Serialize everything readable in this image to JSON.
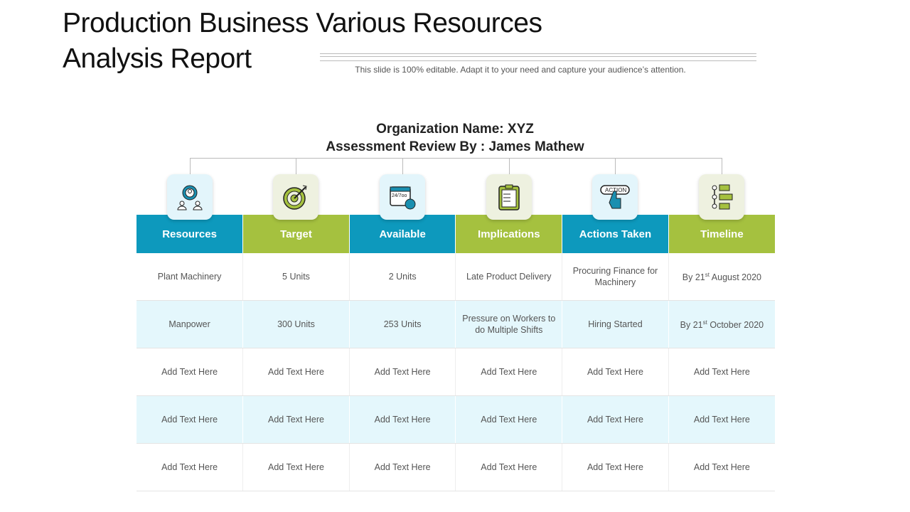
{
  "title_line1": "Production Business Various Resources",
  "title_line2": "Analysis Report",
  "subtitle": "This slide is 100% editable. Adapt it to your need and capture your audience’s attention.",
  "org_line1": "Organization Name: XYZ",
  "org_line2": "Assessment Review By : James Mathew",
  "colors": {
    "blue": "#0d99bd",
    "green": "#a5c13f",
    "row_alt": "#e4f7fc"
  },
  "columns": [
    {
      "label": "Resources",
      "icon": "people-gear-icon",
      "color": "blue"
    },
    {
      "label": "Target",
      "icon": "target-icon",
      "color": "green"
    },
    {
      "label": "Available",
      "icon": "calendar-24-7-icon",
      "color": "blue"
    },
    {
      "label": "Implications",
      "icon": "clipboard-icon",
      "color": "green"
    },
    {
      "label": "Actions Taken",
      "icon": "action-button-icon",
      "color": "blue"
    },
    {
      "label": "Timeline",
      "icon": "timeline-icon",
      "color": "green"
    }
  ],
  "rows": [
    [
      "Plant Machinery",
      "5 Units",
      "2 Units",
      "Late Product Delivery",
      "Procuring Finance for Machinery",
      "By 21|st| August 2020"
    ],
    [
      "Manpower",
      "300 Units",
      "253 Units",
      "Pressure on Workers to do Multiple Shifts",
      "Hiring Started",
      "By 21|st| October 2020"
    ],
    [
      "Add Text Here",
      "Add Text Here",
      "Add Text Here",
      "Add Text Here",
      "Add Text Here",
      "Add Text Here"
    ],
    [
      "Add Text Here",
      "Add Text Here",
      "Add Text Here",
      "Add Text Here",
      "Add Text Here",
      "Add Text Here"
    ],
    [
      "Add Text Here",
      "Add Text Here",
      "Add Text Here",
      "Add Text Here",
      "Add Text Here",
      "Add Text Here"
    ]
  ]
}
